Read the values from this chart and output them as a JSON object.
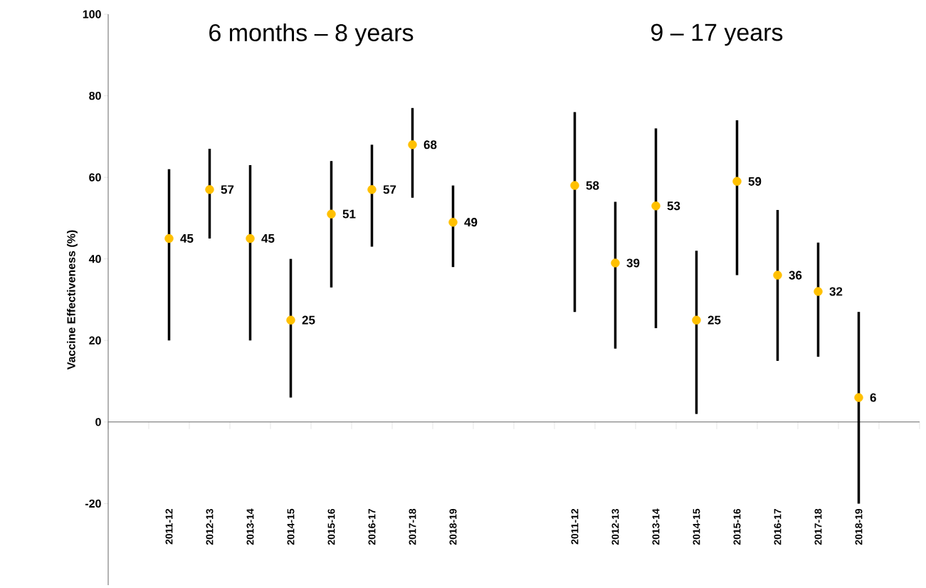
{
  "chart_data": {
    "type": "scatter",
    "ylabel": "Vaccine Effectiveness (%)",
    "annotations": [
      "6 months – 8 years",
      "9 – 17 years"
    ],
    "categories": [
      null,
      "2011-12",
      "2012-13",
      "2013-14",
      "2014-15",
      "2015-16",
      "2016-17",
      "2017-18",
      "2018-19",
      null,
      null,
      "2011-12",
      "2012-13",
      "2013-14",
      "2014-15",
      "2015-16",
      "2016-17",
      "2017-18",
      "2018-19",
      null
    ],
    "values": [
      null,
      45,
      57,
      45,
      25,
      51,
      57,
      68,
      49,
      null,
      null,
      58,
      39,
      53,
      25,
      59,
      36,
      32,
      6,
      null
    ],
    "errors": [
      null,
      [
        20,
        62
      ],
      [
        45,
        67
      ],
      [
        20,
        63
      ],
      [
        6,
        40
      ],
      [
        33,
        64
      ],
      [
        43,
        68
      ],
      [
        55,
        77
      ],
      [
        38,
        58
      ],
      null,
      null,
      [
        27,
        76
      ],
      [
        18,
        54
      ],
      [
        23,
        72
      ],
      [
        2,
        42
      ],
      [
        36,
        74
      ],
      [
        15,
        52
      ],
      [
        16,
        44
      ],
      [
        -20,
        27
      ],
      null
    ],
    "color": "#ffc000",
    "marker": "circle",
    "data_labels": true,
    "ylim": [
      -40,
      100
    ],
    "yticks": [
      -20,
      0,
      20,
      40,
      60,
      80,
      100
    ]
  }
}
